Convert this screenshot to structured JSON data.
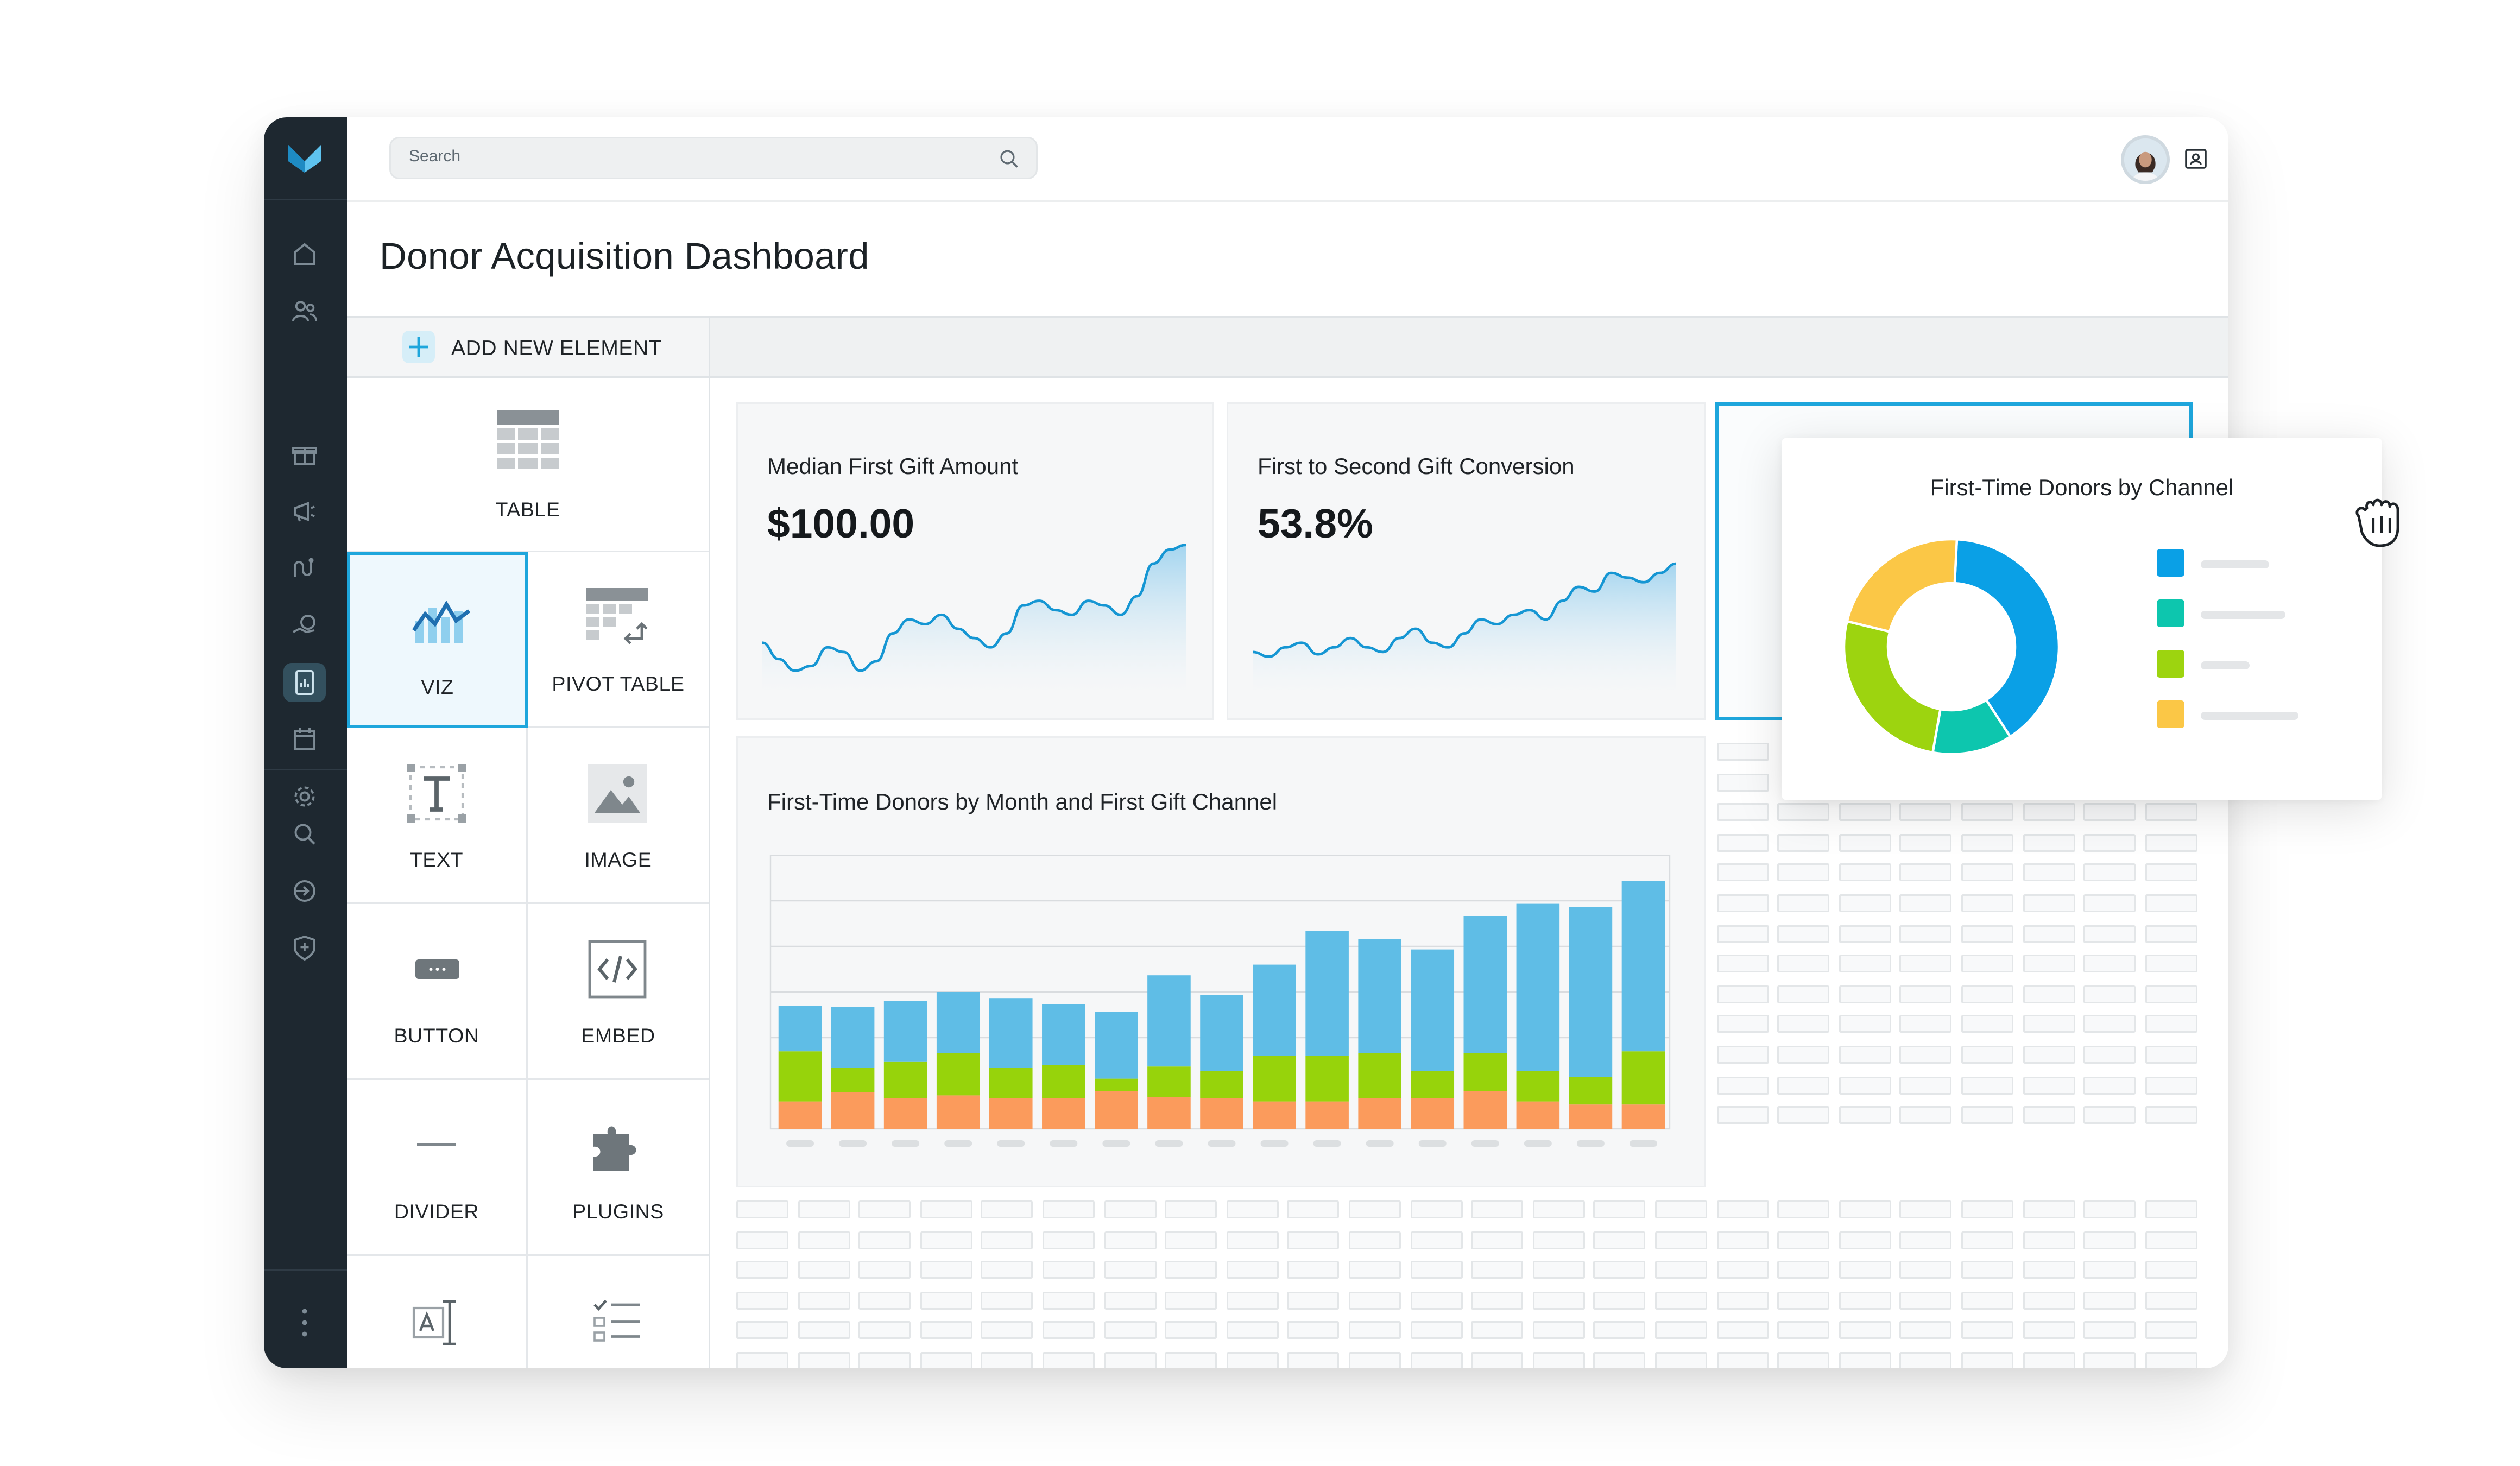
{
  "search": {
    "placeholder": "Search"
  },
  "page": {
    "title": "Donor Acquisition Dashboard"
  },
  "toolbar": {
    "add_label": "ADD NEW ELEMENT"
  },
  "palette": {
    "items": [
      {
        "label": "TABLE",
        "icon": "table-icon"
      },
      {
        "label": "VIZ",
        "icon": "viz-icon",
        "selected": true
      },
      {
        "label": "PIVOT TABLE",
        "icon": "pivot-table-icon"
      },
      {
        "label": "TEXT",
        "icon": "text-icon"
      },
      {
        "label": "IMAGE",
        "icon": "image-icon"
      },
      {
        "label": "BUTTON",
        "icon": "button-icon"
      },
      {
        "label": "EMBED",
        "icon": "embed-icon"
      },
      {
        "label": "DIVIDER",
        "icon": "divider-icon"
      },
      {
        "label": "PLUGINS",
        "icon": "plugins-icon"
      },
      {
        "label": "",
        "icon": "input-icon"
      },
      {
        "label": "",
        "icon": "checklist-icon"
      }
    ]
  },
  "kpi": [
    {
      "title": "Median First Gift Amount",
      "value": "$100.00"
    },
    {
      "title": "First to Second Gift Conversion",
      "value": "53.8%"
    }
  ],
  "colors": {
    "accent": "#1ea6dc",
    "blue": "#5fbde6",
    "green": "#97d30b",
    "orange": "#fb9b5c",
    "donut_blue": "#0aa0e6",
    "donut_teal": "#0dc6ae",
    "donut_green": "#9dd40f",
    "donut_yellow": "#fbc746"
  },
  "chart_data": [
    {
      "type": "bar",
      "stacked": true,
      "title": "First-Time Donors by Month and First Gift Channel",
      "categories": [
        "",
        "",
        "",
        "",
        "",
        "",
        "",
        "",
        "",
        "",
        "",
        "",
        "",
        "",
        "",
        "",
        ""
      ],
      "series": [
        {
          "values": [
            18,
            24,
            20,
            22,
            20,
            20,
            25,
            21,
            20,
            18,
            18,
            20,
            20,
            25,
            18,
            16,
            16
          ]
        },
        {
          "values": [
            33,
            16,
            24,
            28,
            20,
            22,
            8,
            20,
            18,
            30,
            30,
            30,
            18,
            25,
            20,
            18,
            35
          ]
        },
        {
          "values": [
            30,
            40,
            40,
            40,
            46,
            40,
            44,
            60,
            50,
            60,
            82,
            75,
            80,
            90,
            110,
            112,
            112
          ]
        }
      ],
      "ylim": [
        0,
        180
      ],
      "grid": true
    },
    {
      "type": "pie",
      "donut": true,
      "title": "First-Time Donors by Channel",
      "values": [
        40,
        12,
        26,
        22
      ],
      "legend": "right"
    },
    {
      "type": "area",
      "values": [
        62,
        55,
        50,
        52,
        60,
        58,
        50,
        54,
        66,
        72,
        70,
        74,
        68,
        64,
        60,
        66,
        78,
        80,
        76,
        74,
        80,
        78,
        74,
        82,
        96,
        102,
        104
      ]
    },
    {
      "type": "area",
      "values": [
        58,
        56,
        60,
        62,
        57,
        60,
        64,
        60,
        58,
        64,
        68,
        62,
        60,
        66,
        72,
        70,
        74,
        76,
        72,
        80,
        86,
        84,
        92,
        90,
        88,
        92,
        96
      ]
    }
  ]
}
